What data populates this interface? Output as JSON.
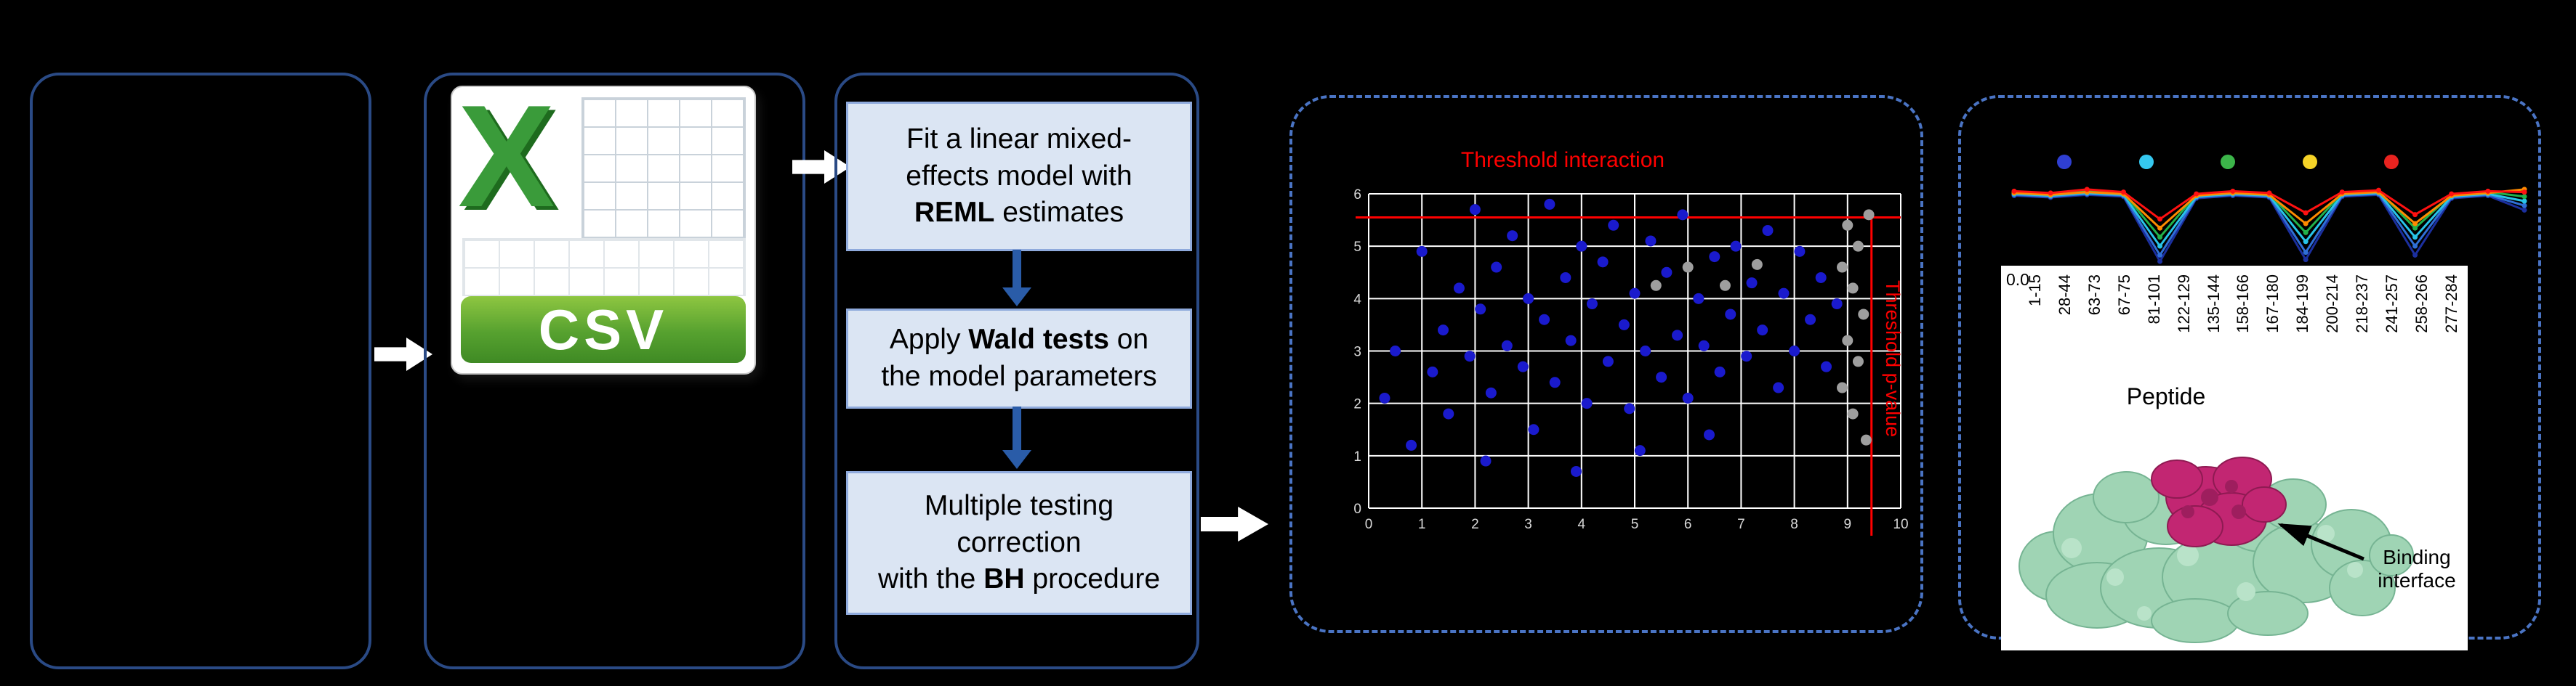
{
  "workflow": {
    "csv": {
      "x_letter": "X",
      "label": "CSV"
    },
    "steps": {
      "s1": {
        "l1": "Fit a linear mixed-",
        "l2": "effects model with",
        "l3b": "REML",
        "l3c": " estimates"
      },
      "s2": {
        "l1a": "Apply ",
        "l1b": "Wald tests",
        "l1c": " on",
        "l2": "the model parameters"
      },
      "s3": {
        "l1": "Multiple testing",
        "l2": "correction",
        "l3a": "with the ",
        "l3b": "BH",
        "l3c": " procedure"
      }
    }
  },
  "icons": {
    "csv_file_icon": "spreadsheet-page-with-green-csv-banner",
    "flow_arrow_icon": "white-right-block-arrow",
    "down_arrow_icon": "blue-down-arrow"
  },
  "colors": {
    "panel_border_solid": "#2a4a85",
    "panel_border_dashed": "#4a74c4",
    "step_box_fill": "#dbe5f3",
    "threshold_red": "#ff0000"
  },
  "protein": {
    "label_l1": "Binding",
    "label_l2": "interface",
    "body_color": "#9fd4b4",
    "interface_color": "#c22672"
  },
  "chart_data": [
    {
      "id": "interaction-scatter",
      "type": "scatter",
      "title": "Threshold interaction",
      "right_label": "Threshold p-value",
      "xlim": [
        0,
        10
      ],
      "ylim": [
        0,
        6
      ],
      "grid": true,
      "x_ticks": [
        0,
        1,
        2,
        3,
        4,
        5,
        6,
        7,
        8,
        9,
        10
      ],
      "y_ticks": [
        0,
        1,
        2,
        3,
        4,
        5,
        6
      ],
      "threshold_lines": {
        "h_y": 5.55,
        "v_x": 9.45,
        "color": "#ff0000"
      },
      "series": [
        {
          "name": "tested-peptides",
          "color": "#1a1acd",
          "points": [
            [
              0.3,
              2.1
            ],
            [
              0.5,
              3.0
            ],
            [
              0.8,
              1.2
            ],
            [
              1.0,
              4.9
            ],
            [
              1.2,
              2.6
            ],
            [
              1.4,
              3.4
            ],
            [
              1.5,
              1.8
            ],
            [
              1.7,
              4.2
            ],
            [
              1.9,
              2.9
            ],
            [
              2.0,
              5.7
            ],
            [
              2.1,
              3.8
            ],
            [
              2.3,
              2.2
            ],
            [
              2.4,
              4.6
            ],
            [
              2.6,
              3.1
            ],
            [
              2.7,
              5.2
            ],
            [
              2.9,
              2.7
            ],
            [
              3.0,
              4.0
            ],
            [
              3.1,
              1.5
            ],
            [
              3.3,
              3.6
            ],
            [
              3.4,
              5.8
            ],
            [
              3.5,
              2.4
            ],
            [
              3.7,
              4.4
            ],
            [
              3.8,
              3.2
            ],
            [
              4.0,
              5.0
            ],
            [
              4.1,
              2.0
            ],
            [
              4.2,
              3.9
            ],
            [
              4.4,
              4.7
            ],
            [
              4.5,
              2.8
            ],
            [
              4.6,
              5.4
            ],
            [
              4.8,
              3.5
            ],
            [
              4.9,
              1.9
            ],
            [
              5.0,
              4.1
            ],
            [
              5.2,
              3.0
            ],
            [
              5.3,
              5.1
            ],
            [
              5.5,
              2.5
            ],
            [
              5.6,
              4.5
            ],
            [
              5.8,
              3.3
            ],
            [
              5.9,
              5.6
            ],
            [
              6.0,
              2.1
            ],
            [
              6.2,
              4.0
            ],
            [
              6.3,
              3.1
            ],
            [
              6.5,
              4.8
            ],
            [
              6.6,
              2.6
            ],
            [
              6.8,
              3.7
            ],
            [
              6.9,
              5.0
            ],
            [
              7.1,
              2.9
            ],
            [
              7.2,
              4.3
            ],
            [
              7.4,
              3.4
            ],
            [
              7.5,
              5.3
            ],
            [
              7.7,
              2.3
            ],
            [
              7.8,
              4.1
            ],
            [
              8.0,
              3.0
            ],
            [
              8.1,
              4.9
            ],
            [
              8.3,
              3.6
            ],
            [
              8.5,
              4.4
            ],
            [
              8.6,
              2.7
            ],
            [
              8.8,
              3.9
            ],
            [
              2.2,
              0.9
            ],
            [
              3.9,
              0.7
            ],
            [
              5.1,
              1.1
            ],
            [
              6.4,
              1.4
            ]
          ]
        },
        {
          "name": "filtered-peptides",
          "color": "#9e9e9e",
          "points": [
            [
              9.0,
              5.4
            ],
            [
              9.2,
              5.0
            ],
            [
              8.9,
              4.6
            ],
            [
              9.1,
              4.2
            ],
            [
              9.3,
              3.7
            ],
            [
              9.0,
              3.2
            ],
            [
              9.2,
              2.8
            ],
            [
              8.9,
              2.3
            ],
            [
              9.1,
              1.8
            ],
            [
              9.4,
              5.6
            ],
            [
              6.0,
              4.6
            ],
            [
              6.7,
              4.25
            ],
            [
              7.3,
              4.65
            ],
            [
              5.4,
              4.25
            ],
            [
              9.35,
              1.3
            ]
          ]
        }
      ]
    },
    {
      "id": "peptide-profile",
      "type": "line",
      "xlabel": "Peptide",
      "y_tick_label": "0.0",
      "categories": [
        "1-15",
        "28-44",
        "63-73",
        "67-75",
        "81-101",
        "122-129",
        "135-144",
        "158-166",
        "167-180",
        "184-199",
        "200-214",
        "218-237",
        "241-257",
        "258-266",
        "277-284"
      ],
      "dot_colors": [
        "#2f3fd2",
        "#35c8ef",
        "#3cb54a",
        "#f5d327",
        "#e8231f"
      ],
      "series": [
        {
          "name": "navy",
          "color": "#1b2f9e",
          "values": [
            0.81,
            0.79,
            0.82,
            0.8,
            0.08,
            0.78,
            0.81,
            0.79,
            0.1,
            0.8,
            0.82,
            0.15,
            0.78,
            0.81,
            0.65
          ]
        },
        {
          "name": "blue",
          "color": "#2f6fd6",
          "values": [
            0.82,
            0.8,
            0.83,
            0.81,
            0.15,
            0.79,
            0.82,
            0.8,
            0.18,
            0.81,
            0.83,
            0.25,
            0.79,
            0.82,
            0.7
          ]
        },
        {
          "name": "cyan",
          "color": "#28c4e8",
          "values": [
            0.83,
            0.81,
            0.84,
            0.82,
            0.25,
            0.8,
            0.83,
            0.81,
            0.3,
            0.82,
            0.84,
            0.35,
            0.8,
            0.83,
            0.75
          ]
        },
        {
          "name": "green",
          "color": "#21b14b",
          "values": [
            0.85,
            0.83,
            0.86,
            0.84,
            0.35,
            0.82,
            0.85,
            0.83,
            0.4,
            0.84,
            0.86,
            0.45,
            0.82,
            0.85,
            0.8
          ]
        },
        {
          "name": "orange",
          "color": "#ff8a00",
          "values": [
            0.84,
            0.82,
            0.85,
            0.83,
            0.45,
            0.81,
            0.84,
            0.82,
            0.5,
            0.83,
            0.85,
            0.5,
            0.81,
            0.84,
            0.88
          ]
        },
        {
          "name": "red",
          "color": "#ff1111",
          "values": [
            0.86,
            0.84,
            0.88,
            0.85,
            0.55,
            0.83,
            0.86,
            0.84,
            0.62,
            0.85,
            0.87,
            0.6,
            0.83,
            0.86,
            0.85
          ]
        }
      ]
    }
  ]
}
